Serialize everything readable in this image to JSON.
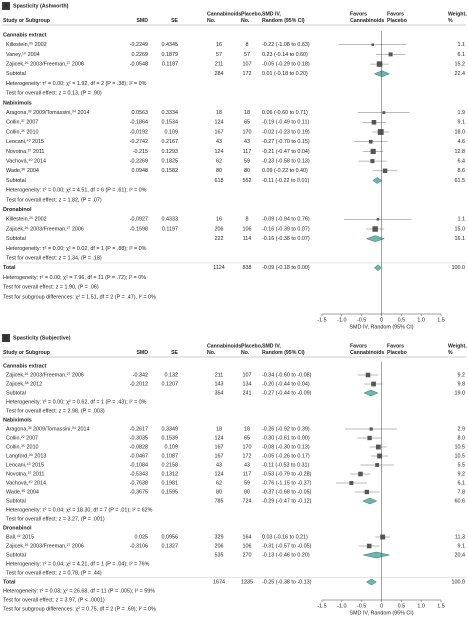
{
  "columns": {
    "study": "Study or Subgroup",
    "smd": "SMD",
    "se": "SE",
    "cannabinoids": [
      "Cannabinoids,",
      "No."
    ],
    "placebo": [
      "Placebo,",
      "No."
    ],
    "ci": [
      "SMD IV,",
      "Random (95% CI)"
    ],
    "favors_left": [
      "Favors",
      "Cannabinoids"
    ],
    "favors_right": [
      "Favors",
      "Placebo"
    ],
    "weight": [
      "Weight,",
      "%"
    ]
  },
  "axis": {
    "label": "SMD IV, Random (95% CI)",
    "xlim": [
      -1.5,
      1.5
    ],
    "xticks": [
      -1.5,
      {
        "value": -1,
        "label": "-1.0"
      },
      -0.5,
      0,
      0.5,
      {
        "value": 1,
        "label": "1.0"
      },
      1.5
    ]
  },
  "panels": [
    {
      "letter": "A",
      "title": "Spasticity (Ashworth)",
      "groups": [
        {
          "name": "Cannabis extract",
          "studies": [
            {
              "study": "Killestein,²⁵ 2002",
              "smd": -0.2249,
              "se": 0.4345,
              "n1": 16,
              "n2": 8,
              "ci": "-0.22 (-1.08 to 0.63)",
              "est": -0.22,
              "lo": -1.08,
              "hi": 0.63,
              "weight": 1.1
            },
            {
              "study": "Vaney,¹⁹ 2004",
              "smd": 0.2269,
              "se": 0.1879,
              "n1": 57,
              "n2": 57,
              "ci": "0.23 (-0.14 to 0.60)",
              "est": 0.23,
              "lo": -0.14,
              "hi": 0.6,
              "weight": 6.1
            },
            {
              "study": "Zajicek,²⁶ 2003/Freeman,²⁷ 2006",
              "smd": -0.0548,
              "se": 0.1187,
              "n1": 211,
              "n2": 107,
              "ci": "-0.05 (-0.29 to 0.18)",
              "est": -0.05,
              "lo": -0.29,
              "hi": 0.18,
              "weight": 15.2
            }
          ],
          "subtotal": {
            "label": "Subtotal",
            "n1": 284,
            "n2": 172,
            "ci": "0.01 (-0.18 to 0.20)",
            "est": 0.01,
            "lo": -0.18,
            "hi": 0.2,
            "weight": 22.4
          },
          "heterogeneity": "Heterogeneity: τ² = 0.00; χ² = 1.92, df = 2 (P = .38); I² = 0%",
          "overall": "Test for overall effect: z = 0.13, (P = .90)"
        },
        {
          "name": "Nabiximols",
          "studies": [
            {
              "study": "Aragona,³³ 2009/Tomassini,³⁴ 2014",
              "smd": 0.0563,
              "se": 0.3334,
              "n1": 18,
              "n2": 18,
              "ci": "0.06 (-0.60 to 0.71)",
              "est": 0.06,
              "lo": -0.6,
              "hi": 0.71,
              "weight": 1.9
            },
            {
              "study": "Collin,³⁷ 2007",
              "smd": -0.1864,
              "se": 0.1534,
              "n1": 124,
              "n2": 65,
              "ci": "-0.19 (-0.49 to 0.11)",
              "est": -0.19,
              "lo": -0.49,
              "hi": 0.11,
              "weight": 9.1
            },
            {
              "study": "Collin,³⁵ 2010",
              "smd": -0.0192,
              "se": 0.109,
              "n1": 167,
              "n2": 170,
              "ci": "-0.02 (-0.23 to 0.19)",
              "est": -0.02,
              "lo": -0.23,
              "hi": 0.19,
              "weight": {
                "value": 18,
                "label": "18.0"
              }
            },
            {
              "study": "Leocani,⁴³ 2015",
              "smd": -0.2742,
              "se": 0.2167,
              "n1": 43,
              "n2": 43,
              "ci": "-0.27 (-0.70 to 0.15)",
              "est": -0.27,
              "lo": -0.7,
              "hi": 0.15,
              "weight": 4.6
            },
            {
              "study": "Novotna,³⁷ 2011",
              "smd": -0.215,
              "se": 0.1293,
              "n1": 124,
              "n2": 117,
              "ci": "-0.21 (-0.47 to 0.04)",
              "est": -0.21,
              "lo": -0.47,
              "hi": 0.04,
              "weight": 12.8
            },
            {
              "study": "Vachová,⁴⁰ 2014",
              "smd": -0.2269,
              "se": 0.1825,
              "n1": 62,
              "n2": 59,
              "ci": "-0.23 (-0.58 to 0.13)",
              "est": -0.23,
              "lo": -0.58,
              "hi": 0.13,
              "weight": 6.4
            },
            {
              "study": "Wade,³⁰ 2004",
              "smd": 0.0948,
              "se": 0.1582,
              "n1": 80,
              "n2": 80,
              "ci": "0.09 (-0.22 to 0.40)",
              "est": 0.09,
              "lo": -0.22,
              "hi": 0.4,
              "weight": 8.6
            }
          ],
          "subtotal": {
            "label": "Subtotal",
            "n1": 618,
            "n2": 552,
            "ci": "-0.11 (-0.22 to 0.01)",
            "est": -0.11,
            "lo": -0.22,
            "hi": 0.01,
            "weight": 61.5
          },
          "heterogeneity": "Heterogeneity: τ² = 0.00; χ² = 4.51, df = 6 (P = .61); I² = 0%",
          "overall": "Test for overall effect: z = 1.82, (P = .07)"
        },
        {
          "name": "Dronabinol",
          "studies": [
            {
              "study": "Killestein,²⁵ 2002",
              "smd": -0.0927,
              "se": 0.4333,
              "n1": 16,
              "n2": 8,
              "ci": "-0.09 (-0.94 to 0.76)",
              "est": -0.09,
              "lo": -0.94,
              "hi": 0.76,
              "weight": 1.1
            },
            {
              "study": "Zajicek,²⁶ 2003/Freeman,²⁷ 2006",
              "smd": -0.1598,
              "se": 0.1197,
              "n1": 206,
              "n2": 106,
              "ci": "-0.16 (-0.39 to 0.07)",
              "est": -0.16,
              "lo": -0.39,
              "hi": 0.07,
              "weight": {
                "value": 15,
                "label": "15.0"
              }
            }
          ],
          "subtotal": {
            "label": "Subtotal",
            "n1": 222,
            "n2": 114,
            "ci": "-0.16 (-0.38 to 0.07)",
            "est": -0.16,
            "lo": -0.38,
            "hi": 0.07,
            "weight": 16.1
          },
          "heterogeneity": "Heterogeneity: τ² = 0.00; χ² = 0.02, df = 1 (P = .88); I² = 0%",
          "overall": "Test for overall effect: z = 1.34, (P = .18)"
        }
      ],
      "total": {
        "label": "Total",
        "n1": 1124,
        "n2": 838,
        "ci": "-0.09 (-0.18 to 0.00)",
        "est": -0.09,
        "lo": -0.18,
        "hi": 0,
        "weight": {
          "value": 100,
          "label": "100.0"
        }
      },
      "heterogeneity": "Heterogeneity: τ² = 0.00; χ² = 7.96, df = 11 (P = .72); I² = 0%",
      "overall": "Test for overall effect: z = 1.90, (P = .06)",
      "subgroup_diff": "Test for subgroup differences: χ² = 1.51, df = 2 (P = .47), I² = 0%"
    },
    {
      "letter": "B",
      "title": "Spasticity (Subjective)",
      "groups": [
        {
          "name": "Cannabis extract",
          "studies": [
            {
              "study": "Zajicek,²⁶ 2003/Freeman,²⁷ 2006",
              "smd": -0.342,
              "se": 0.132,
              "n1": 211,
              "n2": 107,
              "ci": "-0.34 (-0.60 to -0.08)",
              "est": -0.34,
              "lo": -0.6,
              "hi": -0.08,
              "weight": 9.2
            },
            {
              "study": "Zajicek,³⁸ 2012",
              "smd": -0.2012,
              "se": 0.1207,
              "n1": 143,
              "n2": 134,
              "ci": "-0.20 (-0.44 to 0.04)",
              "est": -0.2,
              "lo": -0.44,
              "hi": 0.04,
              "weight": 9.8
            }
          ],
          "subtotal": {
            "label": "Subtotal",
            "n1": 354,
            "n2": 241,
            "ci": "-0.27 (-0.44 to -0.09)",
            "est": -0.27,
            "lo": -0.44,
            "hi": -0.09,
            "weight": {
              "value": 19,
              "label": "19.0"
            }
          },
          "heterogeneity": "Heterogeneity: τ² = 0.00; χ² = 0.62, df = 1 (P = .43); I² = 0%",
          "overall": "Test for overall effect: z = 2.98, (P = .003)"
        },
        {
          "name": "Nabiximols",
          "studies": [
            {
              "study": "Aragona,³³ 2009/Tomassini,³⁴ 2014",
              "smd": -0.2617,
              "se": 0.3349,
              "n1": 18,
              "n2": 18,
              "ci": "-0.26 (-0.92 to 0.39)",
              "est": -0.26,
              "lo": -0.92,
              "hi": 0.39,
              "weight": 2.9
            },
            {
              "study": "Collin,²² 2007",
              "smd": -0.3035,
              "se": 0.1539,
              "n1": 124,
              "n2": 65,
              "ci": "-0.30 (-0.61 to 0.00)",
              "est": -0.3,
              "lo": -0.61,
              "hi": 0,
              "weight": {
                "value": 8,
                "label": "8.0"
              }
            },
            {
              "study": "Collin,³⁵ 2010",
              "smd": -0.0828,
              "se": 0.109,
              "n1": 167,
              "n2": 170,
              "ci": "-0.08 (-0.30 to 0.13)",
              "est": -0.08,
              "lo": -0.3,
              "hi": 0.13,
              "weight": 10.5
            },
            {
              "study": "Langford,³⁹ 2013",
              "smd": -0.0467,
              "se": 0.1087,
              "n1": 167,
              "n2": 172,
              "ci": "-0.05 (-0.26 to 0.17)",
              "est": -0.05,
              "lo": -0.26,
              "hi": 0.17,
              "weight": 10.5
            },
            {
              "study": "Leocani,⁴³ 2015",
              "smd": -0.1084,
              "se": 0.2158,
              "n1": 43,
              "n2": 43,
              "ci": "-0.11 (-0.53 to 0.31)",
              "est": -0.11,
              "lo": -0.53,
              "hi": 0.31,
              "weight": 5.5
            },
            {
              "study": "Novotna,³⁷ 2011",
              "smd": -0.5343,
              "se": 0.1312,
              "n1": 124,
              "n2": 117,
              "ci": "-0.53 (-0.79 to -0.28)",
              "est": -0.53,
              "lo": -0.79,
              "hi": -0.28,
              "weight": 9.2
            },
            {
              "study": "Vachová,⁴⁰ 2014",
              "smd": -0.7638,
              "se": 0.1981,
              "n1": 62,
              "n2": 59,
              "ci": "-0.76 (-1.15 to -0.37)",
              "est": -0.76,
              "lo": -1.15,
              "hi": -0.37,
              "weight": 6.1
            },
            {
              "study": "Wade,³⁰ 2004",
              "smd": -0.3675,
              "se": 0.1595,
              "n1": 80,
              "n2": 80,
              "ci": "-0.37 (-0.68 to -0.05)",
              "est": -0.37,
              "lo": -0.68,
              "hi": -0.05,
              "weight": 7.8
            }
          ],
          "subtotal": {
            "label": "Subtotal",
            "n1": 785,
            "n2": 724,
            "ci": "-0.29 (-0.47 to -0.12)",
            "est": -0.29,
            "lo": -0.47,
            "hi": -0.12,
            "weight": 60.6
          },
          "heterogeneity": "Heterogeneity: τ² = 0.04; χ² = 18.30, df = 7 (P = .01); I² = 62%",
          "overall": "Test for overall effect: z = 3.27, (P = .001)"
        },
        {
          "name": "Dronabinol",
          "studies": [
            {
              "study": "Ball,⁴² 2015",
              "smd": 0.025,
              "se": 0.0956,
              "n1": 329,
              "n2": 164,
              "ci": "0.03 (-0.16 to 0.21)",
              "est": 0.03,
              "lo": -0.16,
              "hi": 0.21,
              "weight": 11.3
            },
            {
              "study": "Zajicek,²⁶ 2003/Freeman,²⁷ 2006",
              "smd": -0.3106,
              "se": 0.1327,
              "n1": 206,
              "n2": 106,
              "ci": "-0.31 (-0.57 to -0.05)",
              "est": -0.31,
              "lo": -0.57,
              "hi": -0.05,
              "weight": 9.1
            }
          ],
          "subtotal": {
            "label": "Subtotal",
            "n1": 535,
            "n2": 270,
            "ci": "-0.13 (-0.46 to 0.20)",
            "est": -0.13,
            "lo": -0.46,
            "hi": 0.2,
            "weight": 20.4
          },
          "heterogeneity": "Heterogeneity: τ² = 0.04; χ² = 4.21, df = 1 (P = .04); I² = 76%",
          "overall": "Test for overall effect: z = 0.78, (P = .44)"
        }
      ],
      "total": {
        "label": "Total",
        "n1": 1674,
        "n2": 1235,
        "ci": "-0.25 (-0.38 to -0.13)",
        "est": -0.25,
        "lo": -0.38,
        "hi": -0.13,
        "weight": {
          "value": 100,
          "label": "100.0"
        }
      },
      "heterogeneity": "Heterogeneity: τ² = 0.03; χ² = 26.68, df = 11 (P = .005); I² = 59%",
      "overall": "Test for overall effect: z = 3.97, (P < .0001)",
      "subgroup_diff": "Test for subgroup differences: χ² = 0.75, df = 2 (P = .69); I² = 0%"
    }
  ]
}
